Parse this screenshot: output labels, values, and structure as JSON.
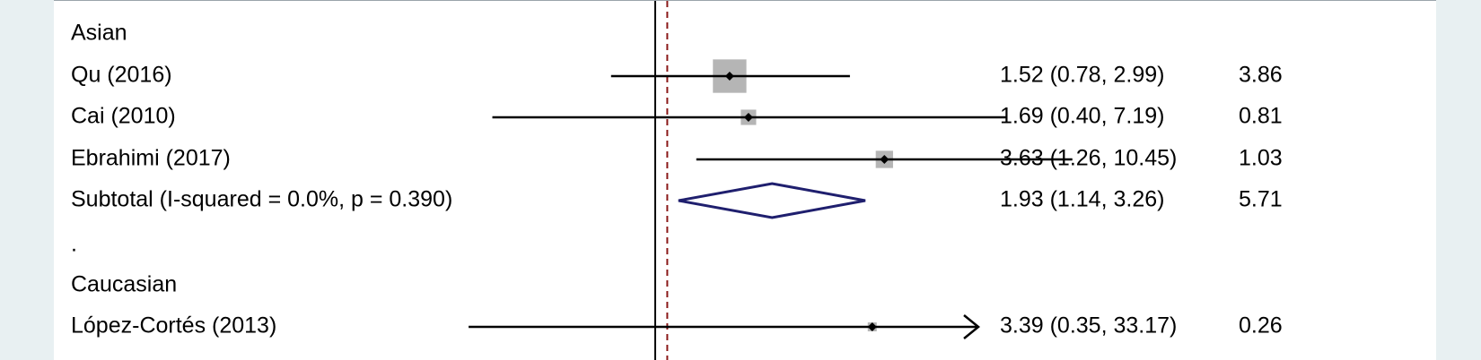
{
  "colors": {
    "background": "#e8f0f2",
    "panel": "#ffffff",
    "ci_line": "#000000",
    "weight_box": "#b5b5b5",
    "point": "#000000",
    "diamond": "#1f1f6e",
    "null_line": "#000000",
    "overall_line": "#8b1a1a"
  },
  "chart_data": {
    "type": "forest",
    "scale": "log",
    "null_value": 1,
    "overall_estimate": 1.07,
    "visible_range": [
      0.2,
      20
    ],
    "rows": [
      {
        "kind": "group",
        "label": "Asian"
      },
      {
        "kind": "study",
        "label": "Qu (2016)",
        "or": 1.52,
        "lower": 0.78,
        "upper": 2.99,
        "ci_text": "1.52 (0.78, 2.99)",
        "weight": "3.86",
        "weight_value": 3.86
      },
      {
        "kind": "study",
        "label": "Cai (2010)",
        "or": 1.69,
        "lower": 0.4,
        "upper": 7.19,
        "ci_text": "1.69 (0.40, 7.19)",
        "weight": "0.81",
        "weight_value": 0.81
      },
      {
        "kind": "study",
        "label": "Ebrahimi (2017)",
        "or": 3.63,
        "lower": 1.26,
        "upper": 10.45,
        "ci_text": "3.63 (1.26, 10.45)",
        "weight": "1.03",
        "weight_value": 1.03
      },
      {
        "kind": "subtotal",
        "label": "Subtotal  (I-squared = 0.0%, p = 0.390)",
        "or": 1.93,
        "lower": 1.14,
        "upper": 3.26,
        "ci_text": "1.93 (1.14, 3.26)",
        "weight": "5.71"
      },
      {
        "kind": "blank",
        "label": "."
      },
      {
        "kind": "group",
        "label": "Caucasian"
      },
      {
        "kind": "study",
        "label": "López-Cortés (2013)",
        "or": 3.39,
        "lower": 0.35,
        "upper": 33.17,
        "ci_text": "3.39 (0.35, 33.17)",
        "weight": "0.26",
        "weight_value": 0.26,
        "arrow_right": true
      }
    ]
  }
}
